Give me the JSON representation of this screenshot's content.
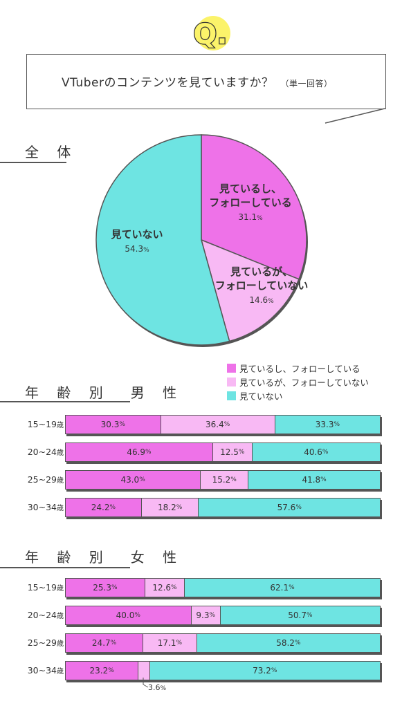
{
  "question": {
    "badge": "Q.",
    "text": "VTuberのコンテンツを見ていますか？",
    "note": "（単一回答）"
  },
  "sections": {
    "overall": "全 体",
    "male": "年 齢 別　男 性",
    "female": "年 齢 別　女 性"
  },
  "legend": [
    {
      "label": "見ているし、フォローしている",
      "color": "#ee72e8"
    },
    {
      "label": "見ているが、フォローしていない",
      "color": "#f8b9f4"
    },
    {
      "label": "見ていない",
      "color": "#6ee4e2"
    }
  ],
  "age_unit": "歳",
  "pct_unit": "%",
  "chart_data": [
    {
      "type": "pie",
      "categories": [
        "見ているし、フォローしている",
        "見ているが、フォローしていない",
        "見ていない"
      ],
      "values": [
        31.1,
        14.6,
        54.3
      ],
      "label_lines": [
        [
          "見ているし、",
          "フォローしている"
        ],
        [
          "見ているが、",
          "フォローしていない"
        ],
        [
          "見ていない"
        ]
      ],
      "colors": [
        "#ee72e8",
        "#f8b9f4",
        "#6ee4e2"
      ]
    },
    {
      "type": "bar",
      "orientation": "horizontal-stacked",
      "categories": [
        "15~19",
        "20~24",
        "25~29",
        "30~34"
      ],
      "series": [
        {
          "name": "見ているし、フォローしている",
          "values": [
            30.3,
            46.9,
            43.0,
            24.2
          ]
        },
        {
          "name": "見ているが、フォローしていない",
          "values": [
            36.4,
            12.5,
            15.2,
            18.2
          ]
        },
        {
          "name": "見ていない",
          "values": [
            33.3,
            40.6,
            41.8,
            57.6
          ]
        }
      ]
    },
    {
      "type": "bar",
      "orientation": "horizontal-stacked",
      "categories": [
        "15~19",
        "20~24",
        "25~29",
        "30~34"
      ],
      "series": [
        {
          "name": "見ているし、フォローしている",
          "values": [
            25.3,
            40.0,
            24.7,
            23.2
          ]
        },
        {
          "name": "見ているが、フォローしていない",
          "values": [
            12.6,
            9.3,
            17.1,
            3.6
          ]
        },
        {
          "name": "見ていない",
          "values": [
            62.1,
            50.7,
            58.2,
            73.2
          ]
        }
      ]
    }
  ]
}
